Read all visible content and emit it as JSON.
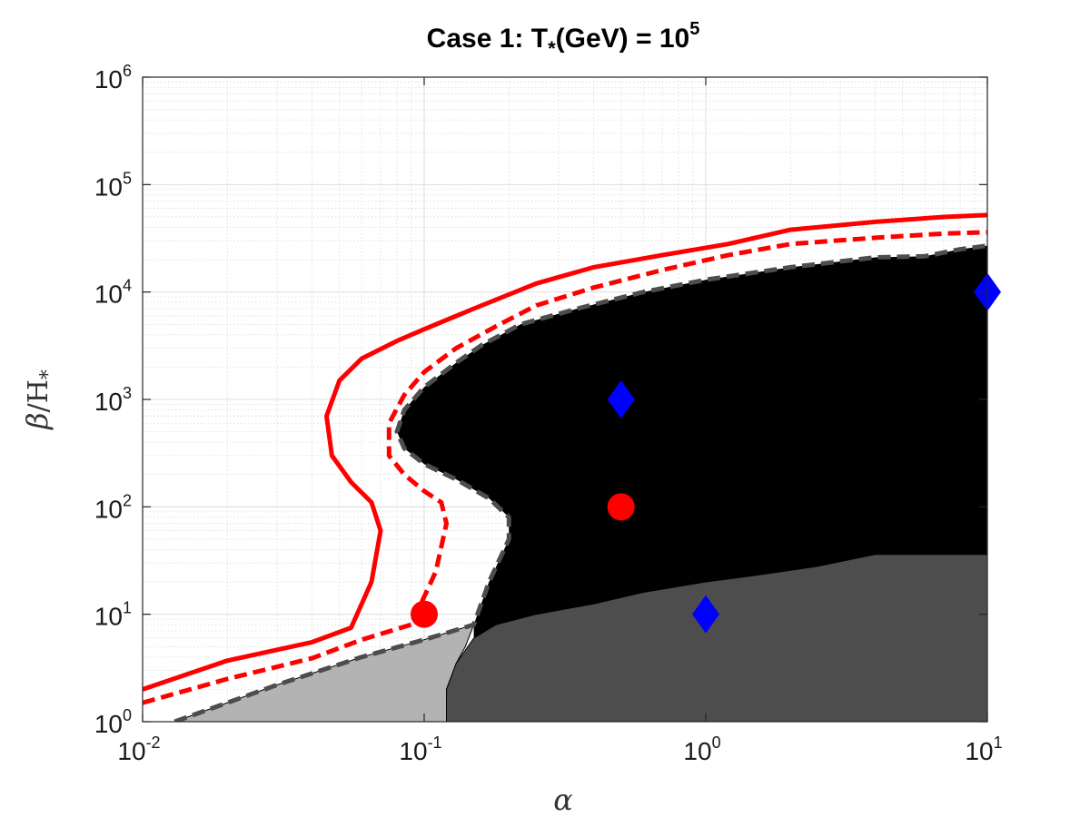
{
  "chart_data": {
    "type": "area",
    "title": {
      "main": "Case 1: T",
      "sub": "*",
      "rest": "(GeV) = 10",
      "sup": "5"
    },
    "xlabel": "α",
    "ylabel": {
      "beta": "β",
      "rest": "/H",
      "sub": "*"
    },
    "x_scale": "log",
    "y_scale": "log",
    "xlim": [
      0.01,
      10
    ],
    "ylim": [
      1,
      1000000
    ],
    "grid": true,
    "x_ticks": [
      {
        "value": 0.01,
        "base": "10",
        "exp": "-2"
      },
      {
        "value": 0.1,
        "base": "10",
        "exp": "-1"
      },
      {
        "value": 1,
        "base": "10",
        "exp": "0"
      },
      {
        "value": 10,
        "base": "10",
        "exp": "1"
      }
    ],
    "y_ticks": [
      {
        "value": 1,
        "base": "10",
        "exp": "0"
      },
      {
        "value": 10,
        "base": "10",
        "exp": "1"
      },
      {
        "value": 100,
        "base": "10",
        "exp": "2"
      },
      {
        "value": 1000,
        "base": "10",
        "exp": "3"
      },
      {
        "value": 10000,
        "base": "10",
        "exp": "4"
      },
      {
        "value": 100000,
        "base": "10",
        "exp": "5"
      },
      {
        "value": 1000000,
        "base": "10",
        "exp": "6"
      }
    ],
    "colors": {
      "black_region": "#000000",
      "dark_gray_region": "#4d4d4d",
      "light_gray_region": "#b3b3b3",
      "boundary_dashed": "#4d4d4d",
      "red_curves": "#ff0000",
      "blue_markers": "#0000ff",
      "red_markers": "#ff0000"
    },
    "regions": {
      "black": [
        [
          0.08,
          500
        ],
        [
          0.085,
          800
        ],
        [
          0.1,
          1300
        ],
        [
          0.13,
          2200
        ],
        [
          0.16,
          3200
        ],
        [
          0.22,
          5000
        ],
        [
          0.35,
          7000
        ],
        [
          0.6,
          10000
        ],
        [
          1.0,
          13000
        ],
        [
          2.0,
          17000
        ],
        [
          4.0,
          21000
        ],
        [
          6.0,
          21500
        ],
        [
          8.0,
          25000
        ],
        [
          10,
          27000
        ],
        [
          10,
          1
        ],
        [
          0.15,
          1
        ],
        [
          0.15,
          8
        ],
        [
          0.17,
          20
        ],
        [
          0.2,
          50
        ],
        [
          0.2,
          80
        ],
        [
          0.17,
          120
        ],
        [
          0.13,
          180
        ],
        [
          0.1,
          250
        ],
        [
          0.085,
          350
        ]
      ],
      "dark_gray": [
        [
          0.12,
          1
        ],
        [
          0.12,
          2
        ],
        [
          0.13,
          3.5
        ],
        [
          0.15,
          6
        ],
        [
          0.18,
          8
        ],
        [
          0.25,
          10
        ],
        [
          0.4,
          12.5
        ],
        [
          0.6,
          16
        ],
        [
          1.0,
          20
        ],
        [
          1.5,
          23
        ],
        [
          2.5,
          28
        ],
        [
          4.0,
          36
        ],
        [
          10,
          36
        ],
        [
          10,
          1
        ]
      ],
      "light_gray": [
        [
          0.013,
          1
        ],
        [
          0.03,
          2.2
        ],
        [
          0.06,
          4
        ],
        [
          0.1,
          5.8
        ],
        [
          0.15,
          8
        ],
        [
          0.14,
          5
        ],
        [
          0.13,
          3.5
        ],
        [
          0.12,
          2
        ],
        [
          0.12,
          1
        ]
      ]
    },
    "series": [
      {
        "style": "dashed-gray",
        "x": [
          0.013,
          0.03,
          0.06,
          0.1,
          0.15,
          0.17,
          0.2,
          0.2,
          0.17,
          0.13,
          0.1,
          0.085,
          0.08,
          0.085,
          0.1,
          0.13,
          0.16,
          0.22,
          0.35,
          0.6,
          1.0,
          2.0,
          4.0,
          6.0,
          8.0,
          10
        ],
        "y": [
          1,
          2.2,
          4,
          5.8,
          8,
          20,
          50,
          80,
          120,
          180,
          250,
          350,
          500,
          800,
          1300,
          2200,
          3200,
          5000,
          7000,
          10000,
          13000,
          17000,
          21000,
          21500,
          25000,
          27000
        ]
      },
      {
        "style": "dashed-red",
        "x": [
          0.01,
          0.02,
          0.04,
          0.06,
          0.09,
          0.11,
          0.12,
          0.115,
          0.1,
          0.085,
          0.075,
          0.075,
          0.085,
          0.1,
          0.13,
          0.18,
          0.25,
          0.4,
          0.7,
          1.2,
          2.0,
          4.0,
          7.0,
          10
        ],
        "y": [
          1.5,
          2.5,
          3.9,
          5.8,
          8,
          25,
          70,
          110,
          140,
          200,
          300,
          600,
          1100,
          1800,
          3000,
          4800,
          7500,
          11000,
          16000,
          22000,
          28000,
          32000,
          35000,
          36000
        ]
      },
      {
        "style": "solid-red",
        "x": [
          0.01,
          0.02,
          0.04,
          0.055,
          0.065,
          0.07,
          0.065,
          0.055,
          0.047,
          0.045,
          0.05,
          0.06,
          0.08,
          0.1,
          0.15,
          0.25,
          0.4,
          0.7,
          1.2,
          2.0,
          4.0,
          7.0,
          10
        ],
        "y": [
          2,
          3.7,
          5.5,
          7.5,
          20,
          60,
          110,
          170,
          300,
          700,
          1500,
          2400,
          3500,
          4500,
          7000,
          12000,
          17000,
          22000,
          28000,
          38000,
          45000,
          50000,
          52000
        ]
      }
    ],
    "markers": [
      {
        "shape": "diamond",
        "x": 0.5,
        "y": 1000
      },
      {
        "shape": "diamond",
        "x": 10,
        "y": 10000
      },
      {
        "shape": "diamond",
        "x": 1,
        "y": 10
      },
      {
        "shape": "circle",
        "x": 0.5,
        "y": 100
      },
      {
        "shape": "circle",
        "x": 0.1,
        "y": 10
      }
    ]
  }
}
